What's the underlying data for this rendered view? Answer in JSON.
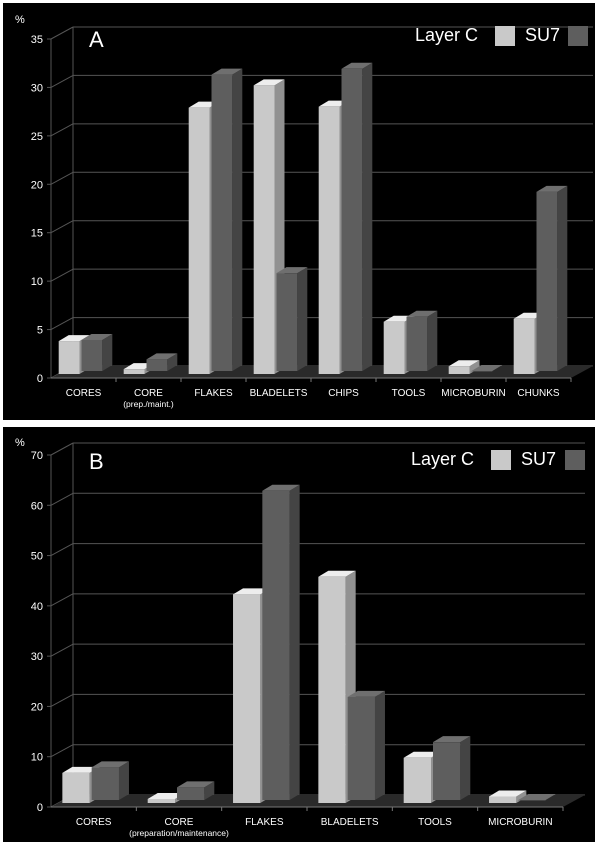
{
  "colors": {
    "background": "#000000",
    "layer_c": "#c9c9c9",
    "su7": "#5e5e5e",
    "grid": "#555555",
    "text": "#ffffff"
  },
  "chart_data": [
    {
      "type": "bar",
      "panel_label": "A",
      "y_unit": "%",
      "ylim": [
        0,
        35
      ],
      "y_ticks": [
        0,
        5,
        10,
        15,
        20,
        25,
        30,
        35
      ],
      "categories": [
        "CORES",
        "CORE",
        "FLAKES",
        "BLADELETS",
        "CHIPS",
        "TOOLS",
        "MICROBURIN",
        "CHUNKS"
      ],
      "category_sublabels": [
        "",
        "(prep./maint.)",
        "",
        "",
        "",
        "",
        "",
        ""
      ],
      "series": [
        {
          "name": "Layer C",
          "values": [
            3.4,
            0.5,
            27.5,
            29.8,
            27.6,
            5.4,
            0.8,
            5.7
          ]
        },
        {
          "name": "SU7",
          "values": [
            3.2,
            1.2,
            30.6,
            10.1,
            31.2,
            5.6,
            0,
            18.5
          ]
        }
      ],
      "legend_position": "top-right",
      "grid": true
    },
    {
      "type": "bar",
      "panel_label": "B",
      "y_unit": "%",
      "ylim": [
        0,
        70
      ],
      "y_ticks": [
        0,
        10,
        20,
        30,
        40,
        50,
        60,
        70
      ],
      "categories": [
        "CORES",
        "CORE",
        "FLAKES",
        "BLADELETS",
        "TOOLS",
        "MICROBURIN"
      ],
      "category_sublabels": [
        "",
        "(preparation/maintenance)",
        "",
        "",
        "",
        ""
      ],
      "series": [
        {
          "name": "Layer C",
          "values": [
            6,
            0.8,
            41.5,
            45,
            9,
            1.3
          ]
        },
        {
          "name": "SU7",
          "values": [
            6.5,
            2.5,
            61.5,
            20.5,
            11.5,
            0
          ]
        }
      ],
      "legend_position": "top-right",
      "grid": true
    }
  ]
}
